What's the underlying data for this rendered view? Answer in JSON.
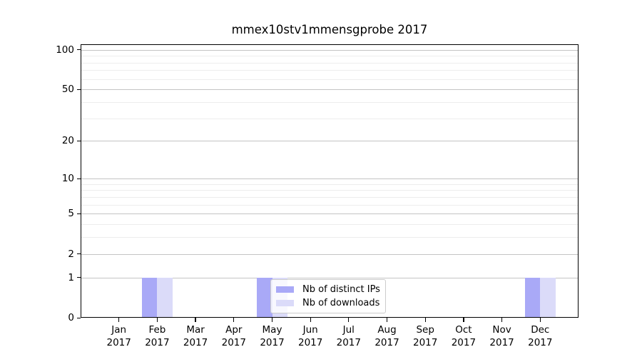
{
  "title": "mmex10stv1mmensgprobe 2017",
  "colors": {
    "ips": "#a9a9f7",
    "downloads": "#dbdbf9",
    "grid_major": "#c4c4c4",
    "grid_minor": "#ededed",
    "axis": "#000000"
  },
  "legend": {
    "items": [
      {
        "label": "Nb of distinct IPs",
        "color_key": "ips"
      },
      {
        "label": "Nb of downloads",
        "color_key": "downloads"
      }
    ]
  },
  "chart_data": {
    "type": "bar",
    "title": "mmex10stv1mmensgprobe 2017",
    "xlabel": "",
    "ylabel": "",
    "scale": "log1p",
    "grid": true,
    "legend_position": "lower-center-right",
    "months": [
      "Jan",
      "Feb",
      "Mar",
      "Apr",
      "May",
      "Jun",
      "Jul",
      "Aug",
      "Sep",
      "Oct",
      "Nov",
      "Dec"
    ],
    "year_label": "2017",
    "series": [
      {
        "name": "Nb of distinct IPs",
        "color_key": "ips",
        "values": [
          0,
          1,
          0,
          0,
          1,
          0,
          0,
          0,
          0,
          0,
          0,
          1
        ]
      },
      {
        "name": "Nb of downloads",
        "color_key": "downloads",
        "values": [
          0,
          1,
          0,
          0,
          1,
          0,
          0,
          0,
          0,
          0,
          0,
          1
        ]
      }
    ],
    "y_major_ticks": [
      0,
      1,
      2,
      5,
      10,
      20,
      50,
      100
    ],
    "y_tick_labels": [
      "0",
      "1",
      "2",
      "5",
      "10",
      "20",
      "50",
      "100"
    ],
    "y_minor_ticks": [
      3,
      4,
      6,
      7,
      8,
      9,
      30,
      40,
      60,
      70,
      80,
      90
    ],
    "ylim": [
      0,
      110
    ]
  }
}
